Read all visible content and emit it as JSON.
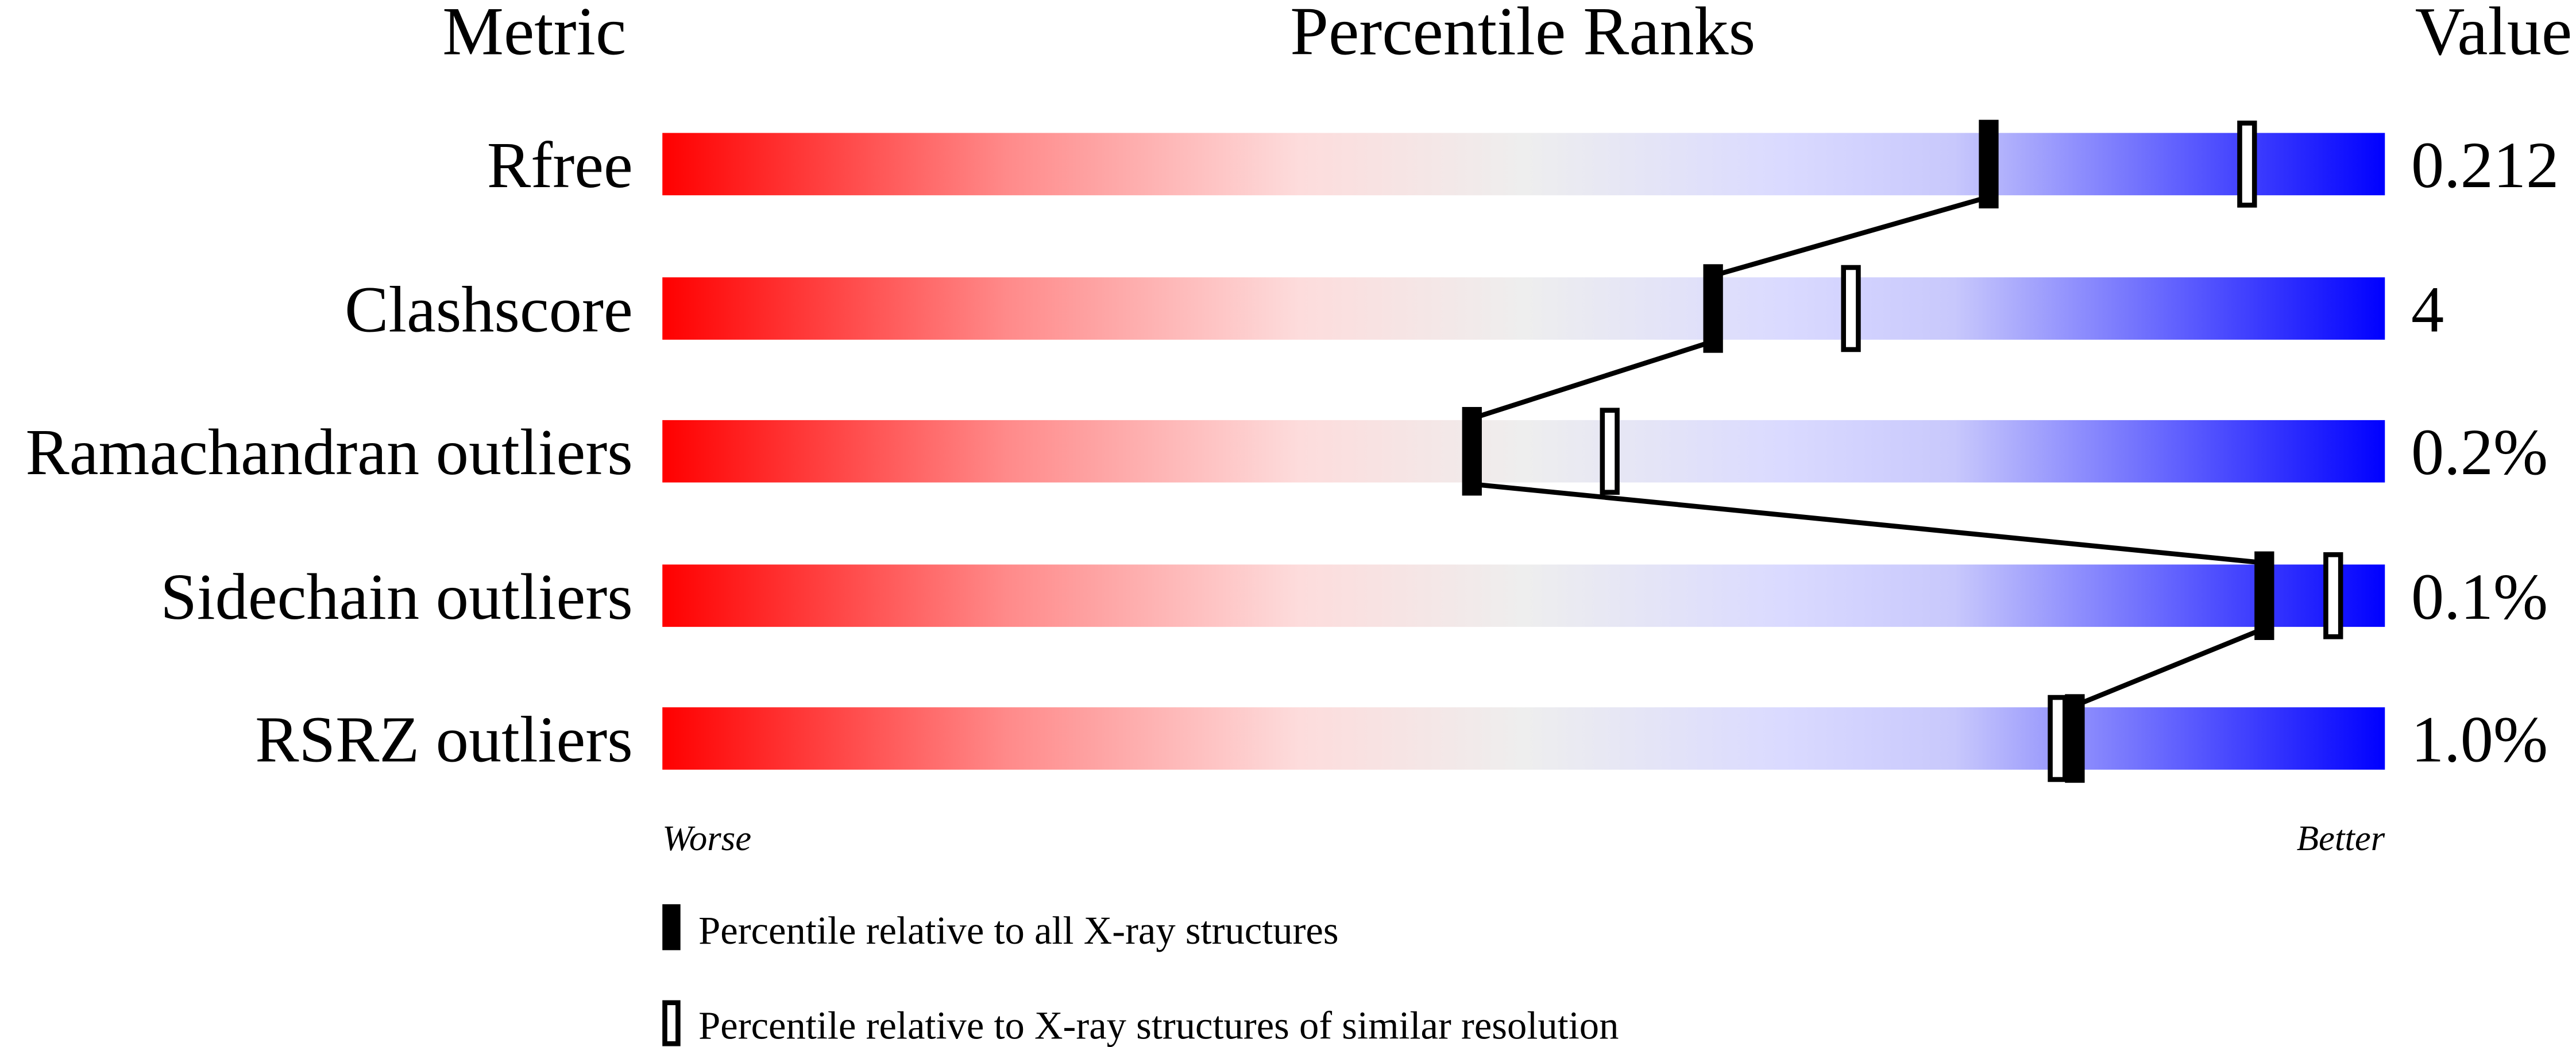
{
  "chart_data": {
    "type": "percentile-slider",
    "headers": {
      "metric": "Metric",
      "ranks": "Percentile Ranks",
      "value": "Value"
    },
    "xlim": [
      0,
      100
    ],
    "axis_labels": {
      "left": "Worse",
      "right": "Better"
    },
    "gradient_colors": [
      "#ff0000",
      "#ffdddd",
      "#eeeeee",
      "#ddddff",
      "#0000ff"
    ],
    "rows": [
      {
        "metric": "Rfree",
        "value": "0.212",
        "percentile_all": 77,
        "percentile_similar": 92
      },
      {
        "metric": "Clashscore",
        "value": "4",
        "percentile_all": 61,
        "percentile_similar": 69
      },
      {
        "metric": "Ramachandran outliers",
        "value": "0.2%",
        "percentile_all": 47,
        "percentile_similar": 55
      },
      {
        "metric": "Sidechain outliers",
        "value": "0.1%",
        "percentile_all": 93,
        "percentile_similar": 97
      },
      {
        "metric": "RSRZ outliers",
        "value": "1.0%",
        "percentile_all": 82,
        "percentile_similar": 81
      }
    ],
    "legend": [
      {
        "marker": "filled",
        "label": "Percentile relative to all X-ray structures"
      },
      {
        "marker": "open",
        "label": "Percentile relative to X-ray structures of similar resolution"
      }
    ]
  }
}
